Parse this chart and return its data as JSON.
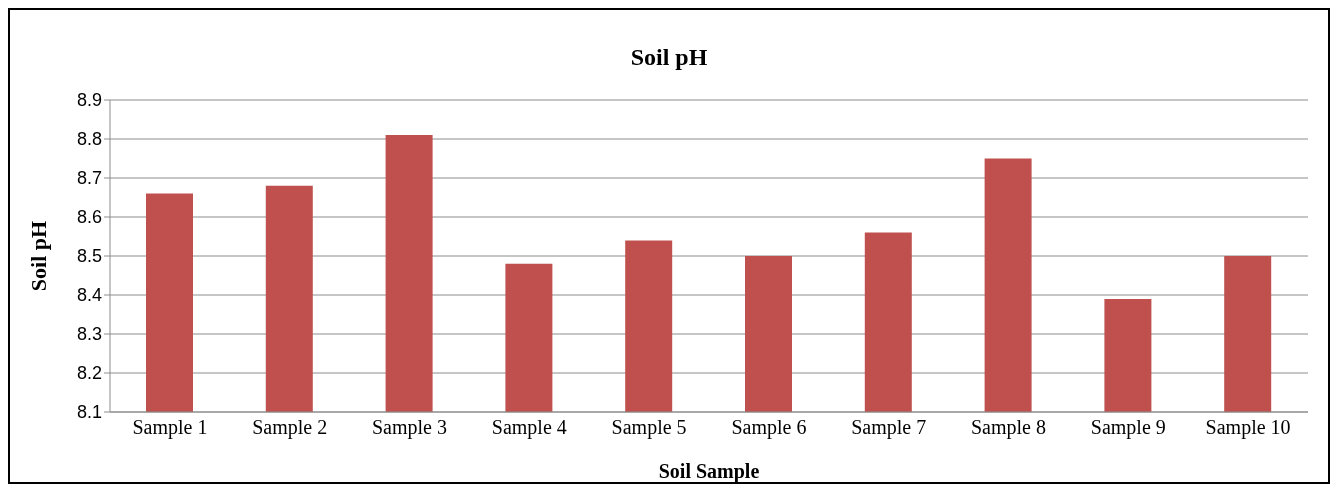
{
  "chart_data": {
    "type": "bar",
    "title": "Soil pH",
    "xlabel": "Soil Sample",
    "ylabel": "Soil pH",
    "categories": [
      "Sample 1",
      "Sample 2",
      "Sample 3",
      "Sample 4",
      "Sample 5",
      "Sample 6",
      "Sample 7",
      "Sample 8",
      "Sample 9",
      "Sample 10"
    ],
    "values": [
      8.66,
      8.68,
      8.81,
      8.48,
      8.54,
      8.5,
      8.56,
      8.75,
      8.39,
      8.5
    ],
    "color": "#c0504d",
    "ylim": [
      8.1,
      8.9
    ],
    "yticks": [
      8.1,
      8.2,
      8.3,
      8.4,
      8.5,
      8.6,
      8.7,
      8.8,
      8.9
    ],
    "grid": "y",
    "legend": false
  }
}
